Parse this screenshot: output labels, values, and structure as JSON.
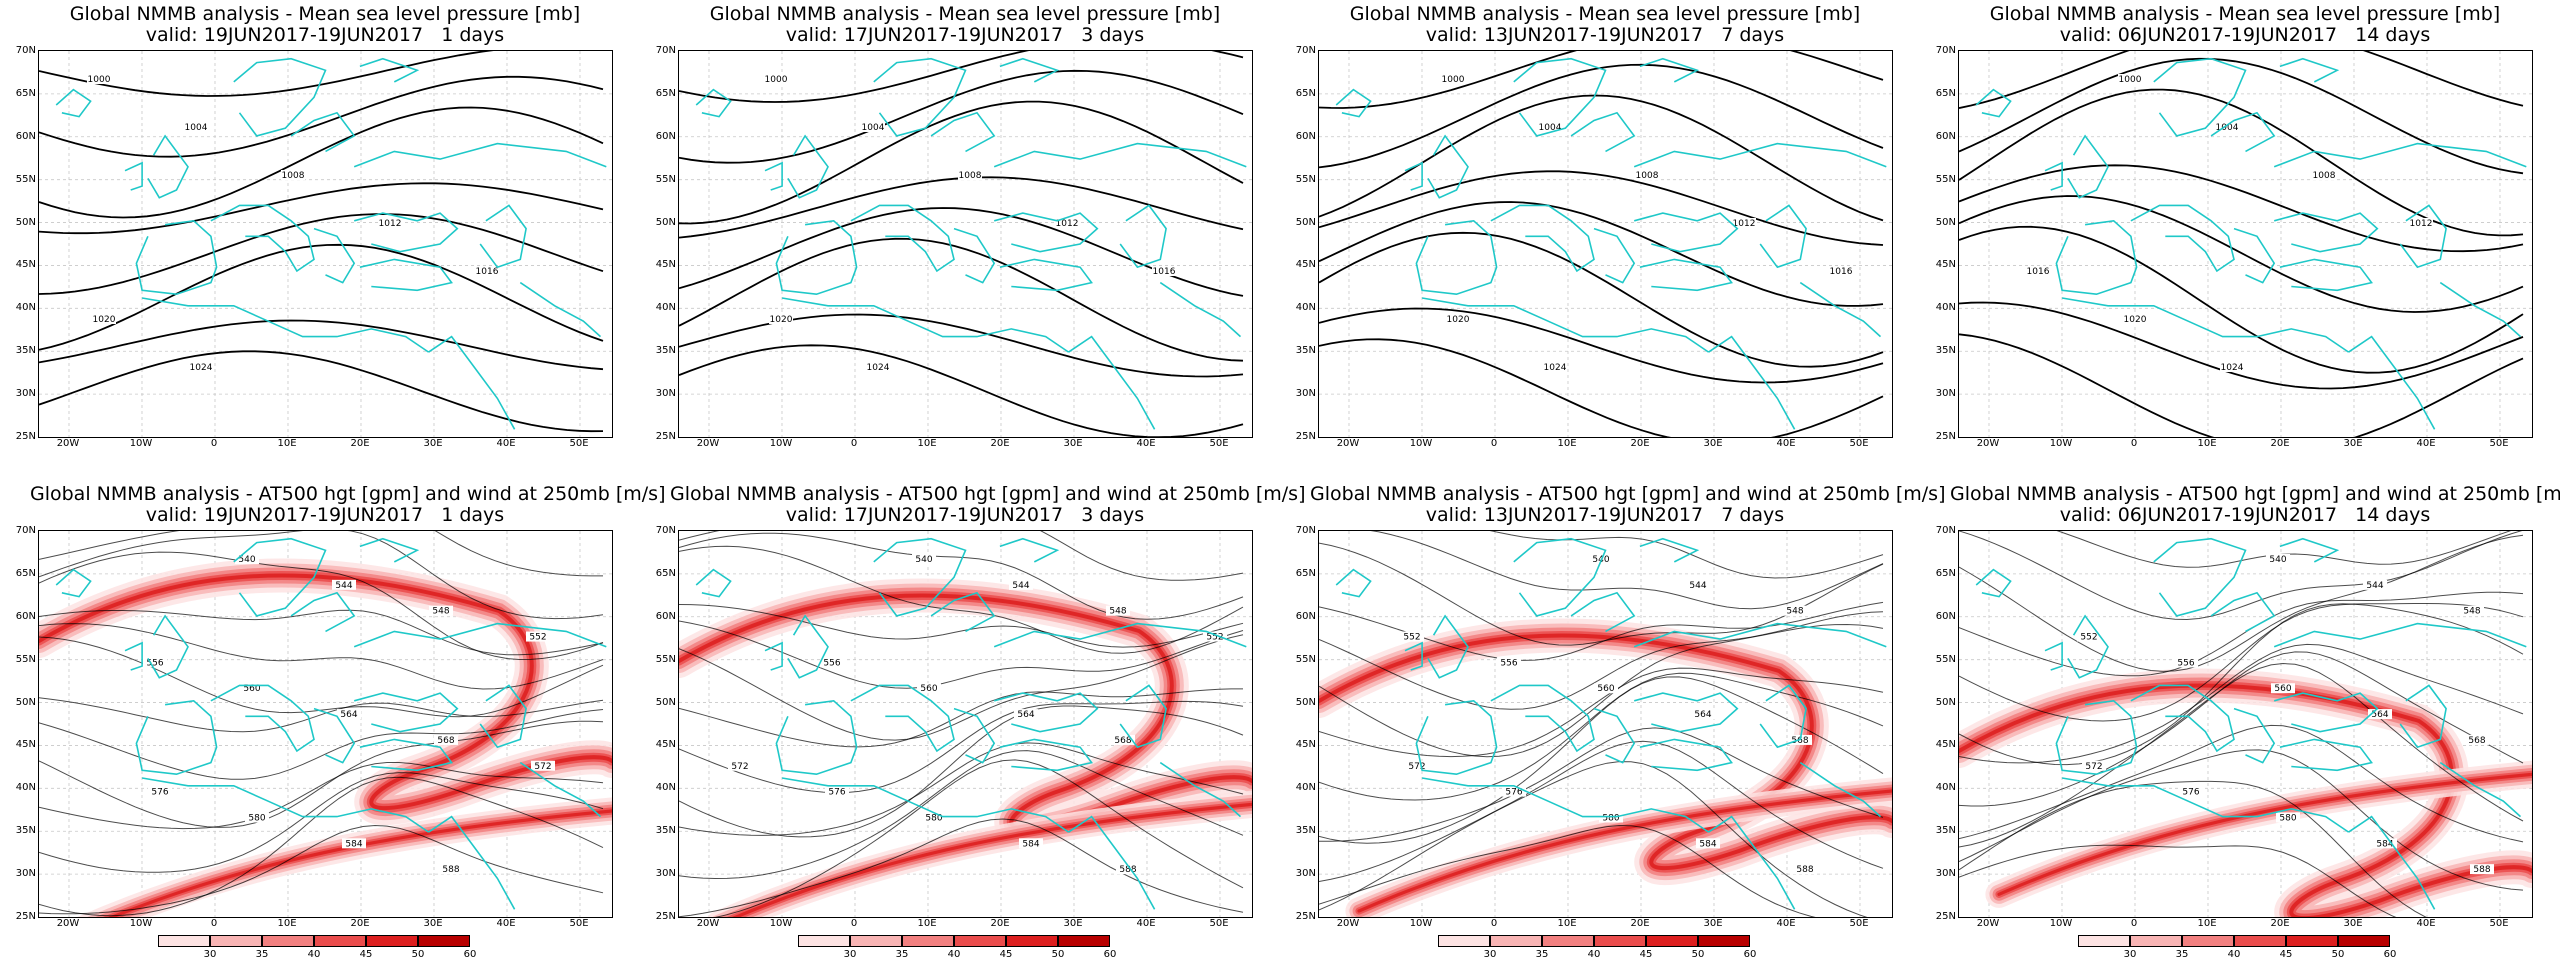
{
  "panels": [
    {
      "title1": "Global NMMB analysis - Mean sea level pressure [mb]",
      "title2": "valid: 19JUN2017-19JUN2017   1 days",
      "kind": "mslp"
    },
    {
      "title1": "Global NMMB analysis - Mean sea level pressure [mb]",
      "title2": "valid: 17JUN2017-19JUN2017   3 days",
      "kind": "mslp"
    },
    {
      "title1": "Global NMMB analysis - Mean sea level pressure [mb]",
      "title2": "valid: 13JUN2017-19JUN2017   7 days",
      "kind": "mslp"
    },
    {
      "title1": "Global NMMB analysis - Mean sea level pressure [mb]",
      "title2": "valid: 06JUN2017-19JUN2017   14 days",
      "kind": "mslp"
    },
    {
      "title1": "Global NMMB analysis - AT500 hgt [gpm] and wind at 250mb [m/s]",
      "title2": "valid: 19JUN2017-19JUN2017   1 days",
      "kind": "z500"
    },
    {
      "title1": "Global NMMB analysis - AT500 hgt [gpm] and wind at 250mb [m/s]",
      "title2": "valid: 17JUN2017-19JUN2017   3 days",
      "kind": "z500"
    },
    {
      "title1": "Global NMMB analysis - AT500 hgt [gpm] and wind at 250mb [m/s]",
      "title2": "valid: 13JUN2017-19JUN2017   7 days",
      "kind": "z500"
    },
    {
      "title1": "Global NMMB analysis - AT500 hgt [gpm] and wind at 250mb [m/s]",
      "title2": "valid: 06JUN2017-19JUN2017   14 days",
      "kind": "z500"
    }
  ],
  "lat_labels": [
    "70N",
    "65N",
    "60N",
    "55N",
    "50N",
    "45N",
    "40N",
    "35N",
    "30N",
    "25N"
  ],
  "lon_labels": [
    "20W",
    "10W",
    "0",
    "10E",
    "20E",
    "30E",
    "40E",
    "50E"
  ],
  "mslp_contour_labels": [
    "1000",
    "1004",
    "1008",
    "1012",
    "1016",
    "1020",
    "1024"
  ],
  "z500_contour_labels": [
    "540",
    "544",
    "548",
    "552",
    "556",
    "560",
    "564",
    "568",
    "572",
    "576",
    "580",
    "584",
    "588"
  ],
  "colorbar": {
    "labels": [
      "30",
      "35",
      "40",
      "45",
      "50",
      "60"
    ],
    "colors": [
      "#fde3e3",
      "#f8b4b4",
      "#f28080",
      "#ea4c4c",
      "#dd1f1f",
      "#b80000"
    ]
  },
  "colors": {
    "coast": "#1fc8c8",
    "contour": "#000000",
    "grid": "#c8c8c8",
    "jet": "#e21a1a"
  }
}
